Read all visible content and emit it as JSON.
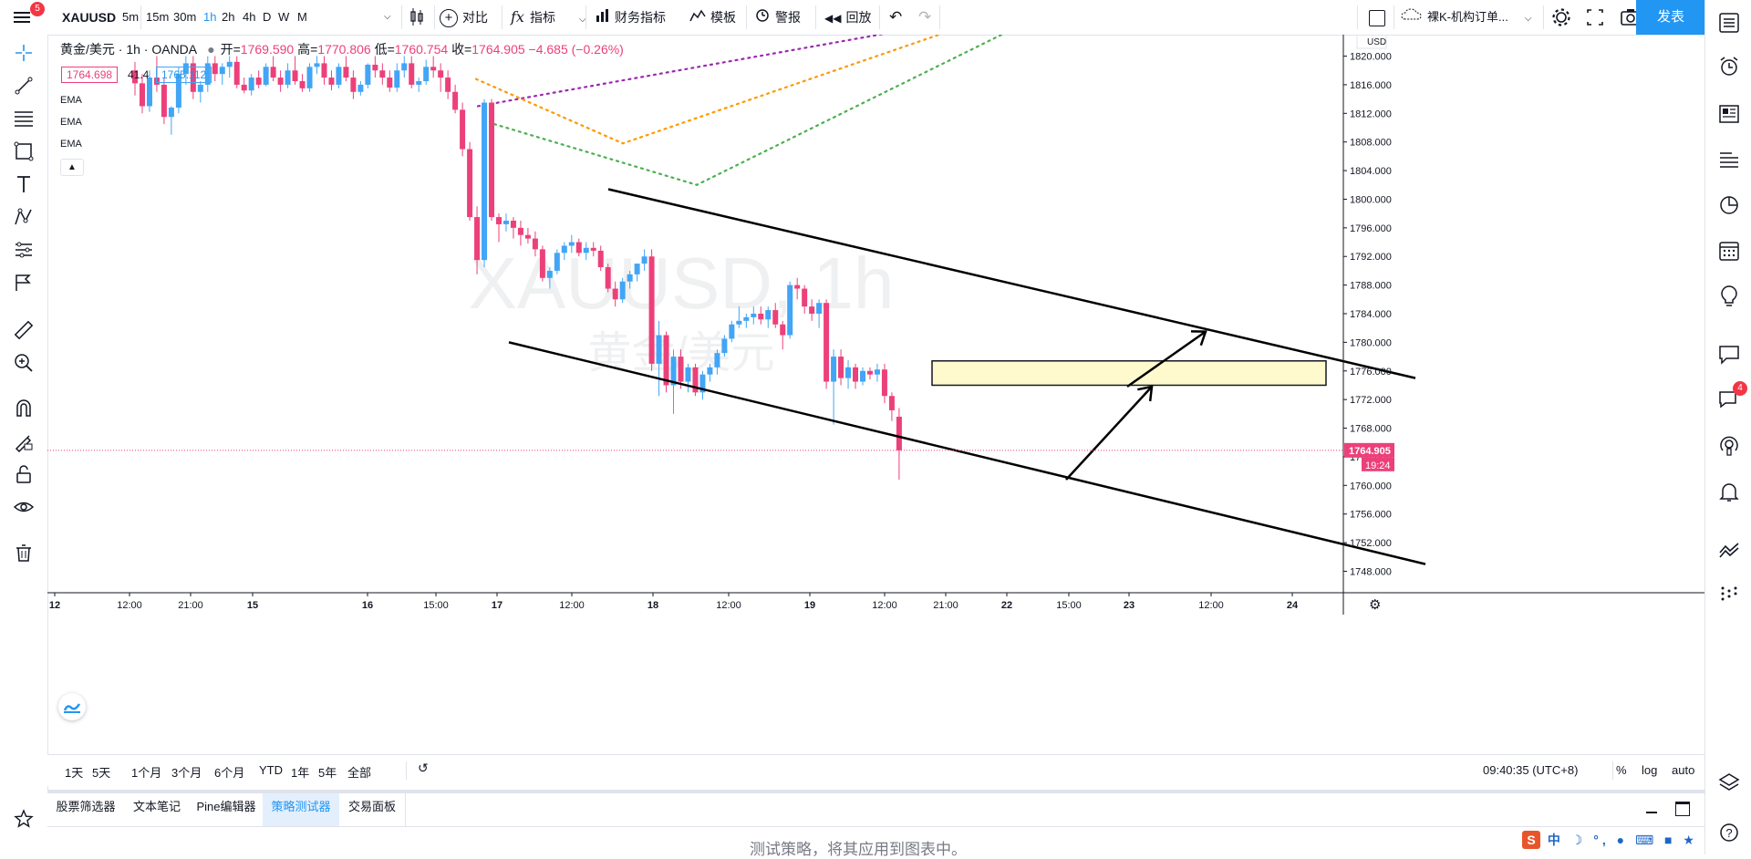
{
  "toolbar": {
    "menu_badge": "5",
    "symbol": "XAUUSD",
    "intervals": [
      "5m",
      "15m",
      "30m",
      "1h",
      "2h",
      "4h",
      "D",
      "W",
      "M"
    ],
    "active_interval": "1h",
    "compare": "对比",
    "indicators": "指标",
    "financials": "财务指标",
    "templates": "模板",
    "alerts": "警报",
    "replay": "回放",
    "layout_name": "裸K-机构订单...",
    "publish": "发表"
  },
  "legend": {
    "title": "黄金/美元 · 1h · OANDA",
    "open_label": "开=",
    "open": "1769.590",
    "high_label": "高=",
    "high": "1770.806",
    "low_label": "低=",
    "low": "1760.754",
    "close_label": "收=",
    "close": "1764.905",
    "change": "−4.685 (−0.26%)",
    "bid": "1764.698",
    "spread": "41.4",
    "ask": "1765.112",
    "indicators": [
      "EMA",
      "EMA",
      "EMA"
    ]
  },
  "watermark": {
    "symbol": "XAUUSD, 1h",
    "name": "黄金/美元"
  },
  "price_axis": {
    "currency": "USD",
    "last_price": "1764.905",
    "countdown": "19:24",
    "colors": {
      "up": "#42a5f5",
      "down": "#ec407a",
      "price_tag": "#ec407a",
      "zone": "#fff9c4"
    }
  },
  "chart_data": {
    "type": "candlestick",
    "symbol": "XAUUSD",
    "interval": "1h",
    "ylim": [
      1745,
      1823
    ],
    "yticks": [
      1748,
      1752,
      1756,
      1760,
      1764,
      1768,
      1772,
      1776,
      1780,
      1784,
      1788,
      1792,
      1796,
      1800,
      1804,
      1808,
      1812,
      1816,
      1820
    ],
    "ytick_labels": [
      "1748.000",
      "1752.000",
      "1756.000",
      "1760.000",
      "1764.000",
      "1768.000",
      "1772.000",
      "1776.000",
      "1780.000",
      "1784.000",
      "1788.000",
      "1792.000",
      "1796.000",
      "1800.000",
      "1804.000",
      "1808.000",
      "1812.000",
      "1816.000",
      "1820.000"
    ],
    "xtick_labels": [
      "12",
      "12:00",
      "21:00",
      "15",
      "16",
      "15:00",
      "17",
      "12:00",
      "18",
      "12:00",
      "19",
      "12:00",
      "21:00",
      "22",
      "15:00",
      "23",
      "12:00",
      "24"
    ],
    "candles": [
      [
        1818.0,
        1819.2,
        1814.5,
        1816.2
      ],
      [
        1816.2,
        1817.5,
        1812.0,
        1813.0
      ],
      [
        1813.0,
        1818.0,
        1812.2,
        1817.0
      ],
      [
        1817.0,
        1820.0,
        1815.0,
        1816.0
      ],
      [
        1816.0,
        1817.0,
        1810.5,
        1811.5
      ],
      [
        1811.5,
        1813.0,
        1809.0,
        1812.8
      ],
      [
        1812.8,
        1818.5,
        1812.0,
        1817.5
      ],
      [
        1817.5,
        1820.0,
        1816.0,
        1819.0
      ],
      [
        1819.0,
        1820.0,
        1814.0,
        1815.0
      ],
      [
        1815.0,
        1816.5,
        1813.5,
        1816.0
      ],
      [
        1816.0,
        1820.0,
        1815.0,
        1819.0
      ],
      [
        1819.0,
        1820.0,
        1816.5,
        1817.5
      ],
      [
        1817.5,
        1819.0,
        1816.0,
        1818.5
      ],
      [
        1818.5,
        1820.0,
        1817.0,
        1819.2
      ],
      [
        1819.2,
        1820.0,
        1815.5,
        1816.0
      ],
      [
        1816.0,
        1817.0,
        1814.8,
        1815.2
      ],
      [
        1815.2,
        1817.5,
        1814.5,
        1817.0
      ],
      [
        1817.0,
        1818.0,
        1815.5,
        1816.0
      ],
      [
        1816.0,
        1819.0,
        1815.8,
        1818.5
      ],
      [
        1818.5,
        1820.0,
        1816.5,
        1817.0
      ],
      [
        1817.0,
        1818.0,
        1815.0,
        1816.0
      ],
      [
        1816.0,
        1819.0,
        1815.5,
        1818.0
      ],
      [
        1818.0,
        1820.0,
        1816.0,
        1816.5
      ],
      [
        1816.5,
        1817.5,
        1815.0,
        1815.5
      ],
      [
        1815.5,
        1819.0,
        1815.0,
        1818.5
      ],
      [
        1818.5,
        1820.0,
        1817.5,
        1819.0
      ],
      [
        1819.0,
        1820.0,
        1816.0,
        1817.0
      ],
      [
        1817.0,
        1818.0,
        1815.2,
        1816.0
      ],
      [
        1816.0,
        1819.0,
        1815.5,
        1818.5
      ],
      [
        1818.5,
        1820.0,
        1816.5,
        1817.0
      ],
      [
        1817.0,
        1818.0,
        1814.0,
        1815.0
      ],
      [
        1815.0,
        1816.5,
        1814.5,
        1816.0
      ],
      [
        1816.0,
        1819.0,
        1815.5,
        1818.8
      ],
      [
        1818.8,
        1820.0,
        1817.0,
        1818.0
      ],
      [
        1818.0,
        1819.0,
        1816.0,
        1817.0
      ],
      [
        1817.0,
        1818.0,
        1815.0,
        1815.6
      ],
      [
        1815.6,
        1819.0,
        1815.0,
        1818.0
      ],
      [
        1818.0,
        1820.0,
        1817.0,
        1819.0
      ],
      [
        1819.0,
        1820.0,
        1815.5,
        1816.0
      ],
      [
        1816.0,
        1817.0,
        1815.0,
        1816.5
      ],
      [
        1816.5,
        1819.5,
        1816.0,
        1818.5
      ],
      [
        1818.5,
        1820.0,
        1817.0,
        1818.0
      ],
      [
        1818.0,
        1819.0,
        1815.0,
        1817.0
      ],
      [
        1817.0,
        1818.0,
        1814.0,
        1815.0
      ],
      [
        1815.0,
        1816.0,
        1812.0,
        1812.5
      ],
      [
        1812.5,
        1813.5,
        1806.0,
        1807.0
      ],
      [
        1807.0,
        1808.0,
        1797.0,
        1797.5
      ],
      [
        1797.5,
        1799.0,
        1789.5,
        1791.5
      ],
      [
        1791.5,
        1814.0,
        1790.5,
        1813.5
      ],
      [
        1813.5,
        1814.0,
        1797.0,
        1797.5
      ],
      [
        1797.5,
        1798.0,
        1794.0,
        1796.5
      ],
      [
        1796.5,
        1798.0,
        1795.5,
        1797.0
      ],
      [
        1797.0,
        1797.5,
        1794.5,
        1796.0
      ],
      [
        1796.0,
        1797.0,
        1793.5,
        1795.0
      ],
      [
        1795.0,
        1796.0,
        1793.8,
        1794.5
      ],
      [
        1794.5,
        1795.5,
        1792.0,
        1793.0
      ],
      [
        1793.0,
        1793.5,
        1788.5,
        1789.0
      ],
      [
        1789.0,
        1790.5,
        1787.5,
        1790.0
      ],
      [
        1790.0,
        1793.0,
        1789.5,
        1792.5
      ],
      [
        1792.5,
        1794.0,
        1791.5,
        1793.5
      ],
      [
        1793.5,
        1795.0,
        1792.5,
        1794.0
      ],
      [
        1794.0,
        1794.5,
        1792.0,
        1792.5
      ],
      [
        1792.5,
        1794.0,
        1791.5,
        1793.2
      ],
      [
        1793.2,
        1794.0,
        1792.0,
        1792.8
      ],
      [
        1792.8,
        1793.5,
        1790.0,
        1790.5
      ],
      [
        1790.5,
        1791.0,
        1787.0,
        1787.5
      ],
      [
        1787.5,
        1788.5,
        1785.0,
        1786.0
      ],
      [
        1786.0,
        1789.0,
        1785.5,
        1788.5
      ],
      [
        1788.5,
        1790.0,
        1787.5,
        1789.5
      ],
      [
        1789.5,
        1791.0,
        1788.5,
        1791.0
      ],
      [
        1791.0,
        1793.0,
        1790.0,
        1792.0
      ],
      [
        1792.0,
        1793.0,
        1776.0,
        1777.0
      ],
      [
        1777.0,
        1783.0,
        1772.5,
        1781.0
      ],
      [
        1781.0,
        1781.5,
        1773.0,
        1774.0
      ],
      [
        1774.0,
        1779.0,
        1770.0,
        1778.0
      ],
      [
        1778.0,
        1779.0,
        1773.5,
        1774.5
      ],
      [
        1774.5,
        1777.0,
        1773.0,
        1776.5
      ],
      [
        1776.5,
        1777.0,
        1772.5,
        1773.0
      ],
      [
        1773.0,
        1776.0,
        1772.0,
        1775.5
      ],
      [
        1775.5,
        1777.0,
        1774.5,
        1776.5
      ],
      [
        1776.5,
        1779.0,
        1775.5,
        1778.5
      ],
      [
        1778.5,
        1781.0,
        1778.0,
        1780.5
      ],
      [
        1780.5,
        1783.0,
        1780.0,
        1782.5
      ],
      [
        1782.5,
        1785.0,
        1782.0,
        1783.0
      ],
      [
        1783.0,
        1784.0,
        1782.0,
        1783.5
      ],
      [
        1783.5,
        1785.0,
        1782.5,
        1784.0
      ],
      [
        1784.0,
        1785.0,
        1782.5,
        1783.2
      ],
      [
        1783.2,
        1785.0,
        1782.0,
        1784.5
      ],
      [
        1784.5,
        1785.5,
        1782.0,
        1782.5
      ],
      [
        1782.5,
        1783.0,
        1779.0,
        1781.0
      ],
      [
        1781.0,
        1788.5,
        1780.5,
        1788.0
      ],
      [
        1788.0,
        1789.0,
        1786.0,
        1787.5
      ],
      [
        1787.5,
        1788.0,
        1784.0,
        1785.0
      ],
      [
        1785.0,
        1786.0,
        1783.0,
        1784.0
      ],
      [
        1784.0,
        1786.0,
        1782.0,
        1785.5
      ],
      [
        1785.5,
        1786.0,
        1773.5,
        1774.5
      ],
      [
        1774.5,
        1779.0,
        1768.5,
        1778.0
      ],
      [
        1778.0,
        1779.0,
        1774.0,
        1775.0
      ],
      [
        1775.0,
        1777.5,
        1773.5,
        1776.5
      ],
      [
        1776.5,
        1777.0,
        1773.5,
        1774.5
      ],
      [
        1774.5,
        1776.5,
        1774.0,
        1776.0
      ],
      [
        1776.0,
        1776.5,
        1774.8,
        1775.5
      ],
      [
        1775.5,
        1777.0,
        1774.5,
        1776.2
      ],
      [
        1776.2,
        1777.0,
        1771.5,
        1772.5
      ],
      [
        1772.5,
        1773.0,
        1769.0,
        1770.5
      ],
      [
        1769.6,
        1770.8,
        1760.8,
        1764.9
      ]
    ],
    "ema_series": [
      {
        "color": "#4caf50",
        "points": [
          [
            1810.5,
            1824
          ],
          [
            1802.0,
            1797.4
          ],
          [
            1827.0,
            1799.0
          ]
        ]
      },
      {
        "color": "#9c27b0",
        "points": [
          [
            1813.0,
            1822.5
          ],
          [
            1827.5,
            1794.0
          ]
        ]
      },
      {
        "color": "#ff9800",
        "points": [
          [
            1816.8,
            1820.0
          ],
          [
            1807.8,
            1799.8
          ],
          [
            1828.8,
            1786.2
          ]
        ]
      }
    ],
    "drawings": {
      "upper_channel": [
        [
          1.0,
          1801.4
        ],
        [
          1.0,
          1775.0
        ]
      ],
      "lower_channel": [
        [
          1.0,
          1780.0
        ],
        [
          1.0,
          1749.0
        ]
      ],
      "zone": {
        "top": 1777.4,
        "bottom": 1774.0
      },
      "arrow1": [
        [
          1760.8
        ],
        [
          1773.8
        ]
      ],
      "arrow2": [
        [
          1773.8
        ],
        [
          1781.5
        ]
      ]
    }
  },
  "bottom_bar": {
    "ranges": [
      "1天",
      "5天",
      "1个月",
      "3个月",
      "6个月",
      "YTD",
      "1年",
      "5年",
      "全部"
    ],
    "time": "09:40:35 (UTC+8)",
    "scale_options": [
      "%",
      "log",
      "auto"
    ]
  },
  "panel_tabs": {
    "tabs": [
      "股票筛选器",
      "文本笔记",
      "Pine编辑器",
      "策略测试器",
      "交易面板"
    ],
    "active": "策略测试器",
    "message": "测试策略，将其应用到图表中。"
  },
  "right_sidebar": {
    "chat_badge": "4"
  }
}
